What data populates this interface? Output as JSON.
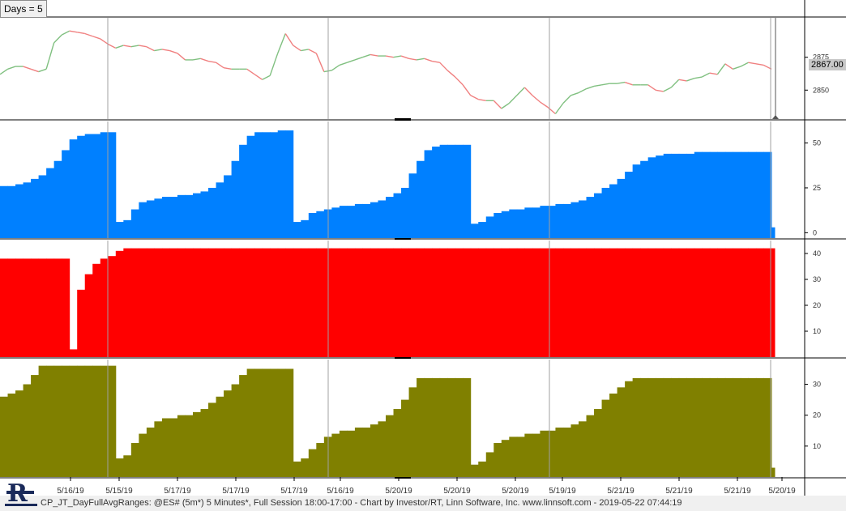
{
  "indicator": {
    "days_label": "Days = 5"
  },
  "footer": {
    "caption": "CP_JT_DayFullAvgRanges: @ES# (5m*) 5 Minutes*, Full Session 18:00-17:00 - Chart by Investor/RT, Linn Software, Inc. www.linnsoft.com - 2019-05-22 07:44:19"
  },
  "logo": {
    "icon": "investor-rt-logo-icon"
  },
  "colors": {
    "price_up": "#80c080",
    "price_down": "#f08080",
    "panel1": "#0080ff",
    "panel2": "#ff0000",
    "panel3": "#808000",
    "session_line": "#a0a0a0"
  },
  "chart_data": [
    {
      "type": "line",
      "panel": "price",
      "last_price": "2867.00",
      "y_ticks": [
        2850,
        2875
      ],
      "ylim": [
        2828,
        2905
      ],
      "x": [
        0,
        1,
        2,
        3,
        4,
        5,
        6,
        7,
        8,
        9,
        10,
        11,
        12,
        13,
        14,
        15,
        16,
        17,
        18,
        19,
        20,
        21,
        22,
        23,
        24,
        25,
        26,
        27,
        28,
        29,
        30,
        31,
        32,
        33,
        34,
        35,
        36,
        37,
        38,
        39,
        40,
        41,
        42,
        43,
        44,
        45,
        46,
        47,
        48,
        49,
        50,
        51,
        52,
        53,
        54,
        55,
        56,
        57,
        58,
        59,
        60,
        61,
        62,
        63,
        64,
        65,
        66,
        67,
        68,
        69,
        70,
        71,
        72,
        73,
        74,
        75,
        76,
        77,
        78,
        79,
        80,
        81,
        82,
        83,
        84,
        85,
        86,
        87,
        88,
        89,
        90,
        91,
        92,
        93,
        94,
        95,
        96,
        97,
        98,
        99,
        100
      ],
      "values": [
        2862,
        2866,
        2868,
        2868,
        2866,
        2864,
        2866,
        2886,
        2892,
        2895,
        2894,
        2893,
        2891,
        2889,
        2885,
        2882,
        2884,
        2883,
        2884,
        2883,
        2880,
        2881,
        2880,
        2878,
        2873,
        2873,
        2874,
        2872,
        2871,
        2867,
        2866,
        2866,
        2866,
        2862,
        2858,
        2861,
        2878,
        2893,
        2884,
        2880,
        2881,
        2878,
        2864,
        2865,
        2869,
        2871,
        2873,
        2875,
        2877,
        2876,
        2876,
        2875,
        2876,
        2874,
        2873,
        2874,
        2872,
        2871,
        2865,
        2860,
        2854,
        2846,
        2843,
        2842,
        2842,
        2836,
        2840,
        2846,
        2852,
        2846,
        2841,
        2837,
        2832,
        2840,
        2846,
        2848,
        2851,
        2853,
        2854,
        2855,
        2855,
        2856,
        2854,
        2854,
        2854,
        2850,
        2849,
        2852,
        2858,
        2857,
        2859,
        2860,
        2863,
        2862,
        2870,
        2866,
        2868,
        2871,
        2870,
        2869,
        2866
      ]
    },
    {
      "type": "area",
      "panel": "blue",
      "y_ticks": [
        0,
        25,
        50
      ],
      "ylim": [
        -3,
        62
      ],
      "x": [
        0,
        5,
        10,
        15,
        20,
        25,
        30,
        35,
        40,
        45,
        50,
        55,
        60,
        65,
        70,
        75,
        80,
        85,
        90,
        95,
        100,
        105,
        110,
        115,
        120,
        125,
        130,
        135,
        140,
        145,
        150,
        155,
        160,
        165,
        170,
        175,
        180,
        185,
        190,
        195,
        200,
        205,
        210,
        215,
        220,
        225,
        230,
        235,
        240,
        245,
        250,
        255,
        260,
        265,
        270,
        275,
        280,
        285,
        290,
        295,
        300,
        305,
        310,
        315,
        320,
        325,
        330,
        335,
        340,
        345,
        350,
        355,
        360,
        365,
        370,
        375,
        380,
        385,
        390,
        395,
        400,
        405,
        410,
        415,
        420,
        425,
        430,
        435,
        440,
        445,
        450,
        455,
        460,
        465,
        470,
        475,
        480,
        485,
        490,
        495,
        500
      ],
      "values": [
        26,
        26,
        27,
        28,
        30,
        32,
        36,
        40,
        46,
        52,
        54,
        55,
        55,
        56,
        56,
        6,
        7,
        13,
        17,
        18,
        19,
        20,
        20,
        21,
        21,
        22,
        23,
        25,
        28,
        32,
        40,
        49,
        54,
        56,
        56,
        56,
        57,
        57,
        6,
        7,
        11,
        12,
        13,
        14,
        15,
        15,
        16,
        16,
        17,
        18,
        20,
        22,
        25,
        33,
        40,
        46,
        48,
        49,
        49,
        49,
        49,
        5,
        6,
        9,
        11,
        12,
        13,
        13,
        14,
        14,
        15,
        15,
        16,
        16,
        17,
        18,
        20,
        22,
        25,
        27,
        30,
        34,
        38,
        40,
        42,
        43,
        44,
        44,
        44,
        44,
        45,
        45,
        45,
        45,
        45,
        45,
        45,
        45,
        45,
        45,
        3
      ]
    },
    {
      "type": "area",
      "panel": "red",
      "y_ticks": [
        10,
        20,
        30,
        40
      ],
      "ylim": [
        0,
        45
      ],
      "x": [
        0,
        5,
        10,
        15,
        20,
        25,
        30,
        35,
        40,
        45,
        50,
        55,
        60,
        65,
        70,
        75,
        80,
        85,
        90,
        95,
        100,
        105,
        110,
        115,
        120,
        125,
        130,
        135,
        140,
        145,
        150,
        155,
        160,
        165,
        170,
        175,
        180,
        185,
        190,
        195,
        200,
        205,
        210,
        215,
        220,
        225,
        230,
        235,
        240,
        245,
        250,
        255,
        260,
        265,
        270,
        275,
        280,
        285,
        290,
        295,
        300,
        305,
        310,
        315,
        320,
        325,
        330,
        335,
        340,
        345,
        350,
        355,
        360,
        365,
        370,
        375,
        380,
        385,
        390,
        395,
        400,
        405,
        410,
        415,
        420,
        425,
        430,
        435,
        440,
        445,
        450,
        455,
        460,
        465,
        470,
        475,
        480,
        485,
        490,
        495,
        500
      ],
      "values": [
        38,
        38,
        38,
        38,
        38,
        38,
        38,
        38,
        38,
        3,
        26,
        32,
        36,
        38,
        39,
        41,
        42,
        42,
        42,
        42,
        42,
        42,
        42,
        42,
        42,
        42,
        42,
        42,
        42,
        42,
        42,
        42,
        42,
        42,
        42,
        42,
        42,
        42,
        42,
        42,
        42,
        42,
        42,
        42,
        42,
        42,
        42,
        42,
        42,
        42,
        42,
        42,
        42,
        42,
        42,
        42,
        42,
        42,
        42,
        42,
        42,
        42,
        42,
        42,
        42,
        42,
        42,
        42,
        42,
        42,
        42,
        42,
        42,
        42,
        42,
        42,
        42,
        42,
        42,
        42,
        42,
        42,
        42,
        42,
        42,
        42,
        42,
        42,
        42,
        42,
        42,
        42,
        42,
        42,
        42,
        42,
        42,
        42,
        42,
        42,
        42
      ]
    },
    {
      "type": "area",
      "panel": "olive",
      "y_ticks": [
        10,
        20,
        30
      ],
      "ylim": [
        0,
        38
      ],
      "x": [
        0,
        5,
        10,
        15,
        20,
        25,
        30,
        35,
        40,
        45,
        50,
        55,
        60,
        65,
        70,
        75,
        80,
        85,
        90,
        95,
        100,
        105,
        110,
        115,
        120,
        125,
        130,
        135,
        140,
        145,
        150,
        155,
        160,
        165,
        170,
        175,
        180,
        185,
        190,
        195,
        200,
        205,
        210,
        215,
        220,
        225,
        230,
        235,
        240,
        245,
        250,
        255,
        260,
        265,
        270,
        275,
        280,
        285,
        290,
        295,
        300,
        305,
        310,
        315,
        320,
        325,
        330,
        335,
        340,
        345,
        350,
        355,
        360,
        365,
        370,
        375,
        380,
        385,
        390,
        395,
        400,
        405,
        410,
        415,
        420,
        425,
        430,
        435,
        440,
        445,
        450,
        455,
        460,
        465,
        470,
        475,
        480,
        485,
        490,
        495,
        500
      ],
      "values": [
        26,
        27,
        28,
        30,
        33,
        36,
        36,
        36,
        36,
        36,
        36,
        36,
        36,
        36,
        36,
        6,
        7,
        11,
        14,
        16,
        18,
        19,
        19,
        20,
        20,
        21,
        22,
        24,
        26,
        28,
        30,
        33,
        35,
        35,
        35,
        35,
        35,
        35,
        5,
        6,
        9,
        11,
        13,
        14,
        15,
        15,
        16,
        16,
        17,
        18,
        20,
        22,
        25,
        29,
        32,
        32,
        32,
        32,
        32,
        32,
        32,
        4,
        5,
        8,
        11,
        12,
        13,
        13,
        14,
        14,
        15,
        15,
        16,
        16,
        17,
        18,
        20,
        22,
        25,
        27,
        29,
        31,
        32,
        32,
        32,
        32,
        32,
        32,
        32,
        32,
        32,
        32,
        32,
        32,
        32,
        32,
        32,
        32,
        32,
        32,
        3
      ]
    }
  ],
  "x_axis": {
    "date_labels": [
      "5/16/19",
      "5/15/19",
      "5/17/19",
      "5/17/19",
      "5/17/19",
      "5/16/19",
      "5/20/19",
      "5/20/19",
      "5/20/19",
      "5/19/19",
      "5/21/19",
      "5/21/19",
      "5/21/19",
      "5/20/19"
    ]
  }
}
